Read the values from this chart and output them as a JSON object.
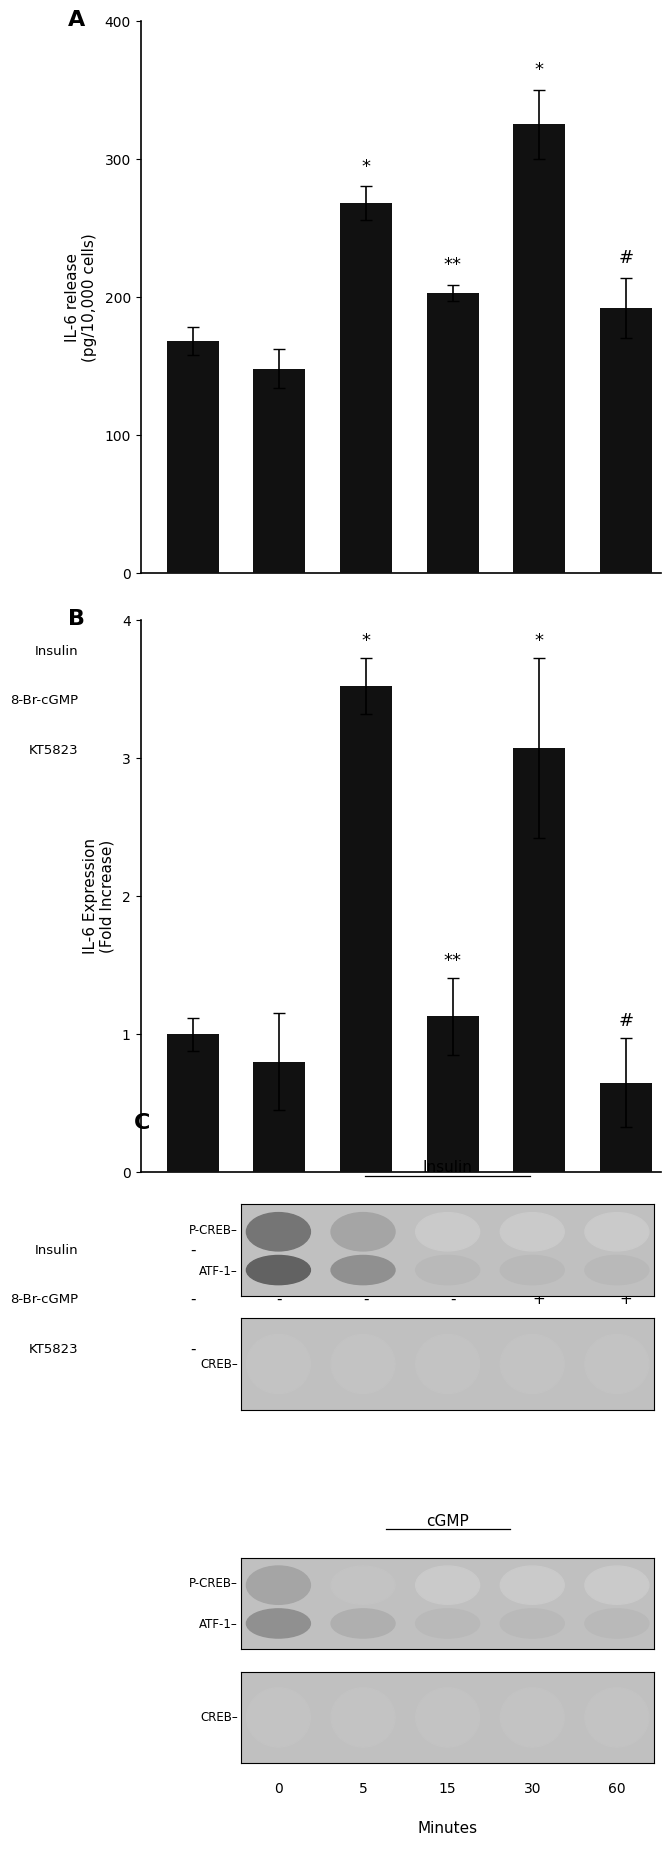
{
  "panel_A": {
    "values": [
      168,
      148,
      268,
      203,
      325,
      192
    ],
    "errors": [
      10,
      14,
      12,
      6,
      25,
      22
    ],
    "ylabel": "IL-6 release\n(pg/10,000 cells)",
    "ylim": [
      0,
      400
    ],
    "yticks": [
      0,
      100,
      200,
      300,
      400
    ],
    "significance": [
      "",
      "",
      "*",
      "**",
      "*",
      "#"
    ],
    "label": "A"
  },
  "panel_B": {
    "values": [
      1.0,
      0.8,
      3.52,
      1.13,
      3.07,
      0.65
    ],
    "errors": [
      0.12,
      0.35,
      0.2,
      0.28,
      0.65,
      0.32
    ],
    "ylabel": "IL-6 Expression\n(Fold Increase)",
    "ylim": [
      0,
      4
    ],
    "yticks": [
      0,
      1,
      2,
      3,
      4
    ],
    "significance": [
      "",
      "",
      "*",
      "**",
      "*",
      "#"
    ],
    "label": "B"
  },
  "treatment_labels": [
    "Insulin",
    "8-Br-cGMP",
    "KT5823"
  ],
  "treatment_signs_A": [
    [
      "-",
      "-",
      "+",
      "+",
      "-",
      "-"
    ],
    [
      "-",
      "-",
      "-",
      "-",
      "+",
      "+"
    ],
    [
      "-",
      "+",
      "-",
      "+",
      "-",
      "+"
    ]
  ],
  "treatment_signs_B": [
    [
      "-",
      "-",
      "+",
      "+",
      "-",
      "-"
    ],
    [
      "-",
      "-",
      "-",
      "-",
      "+",
      "+"
    ],
    [
      "-",
      "+",
      "-",
      "+",
      "-",
      "+"
    ]
  ],
  "bar_color": "#111111",
  "bar_width": 0.6,
  "panel_C": {
    "label": "C",
    "insulin_title": "Insulin",
    "cgmp_title": "cGMP",
    "xlabel": "Minutes",
    "xtick_labels": [
      "0",
      "5",
      "15",
      "30",
      "60"
    ],
    "ins_pcreb_intensities": [
      0.62,
      0.45,
      0.32,
      0.32,
      0.32
    ],
    "ins_creb_intensities": [
      0.35,
      0.35,
      0.35,
      0.35,
      0.35
    ],
    "cgmp_pcreb_intensities": [
      0.45,
      0.35,
      0.32,
      0.32,
      0.32
    ],
    "cgmp_creb_intensities": [
      0.35,
      0.35,
      0.35,
      0.35,
      0.35
    ],
    "gel_bg_color": "#c0c0c0"
  }
}
